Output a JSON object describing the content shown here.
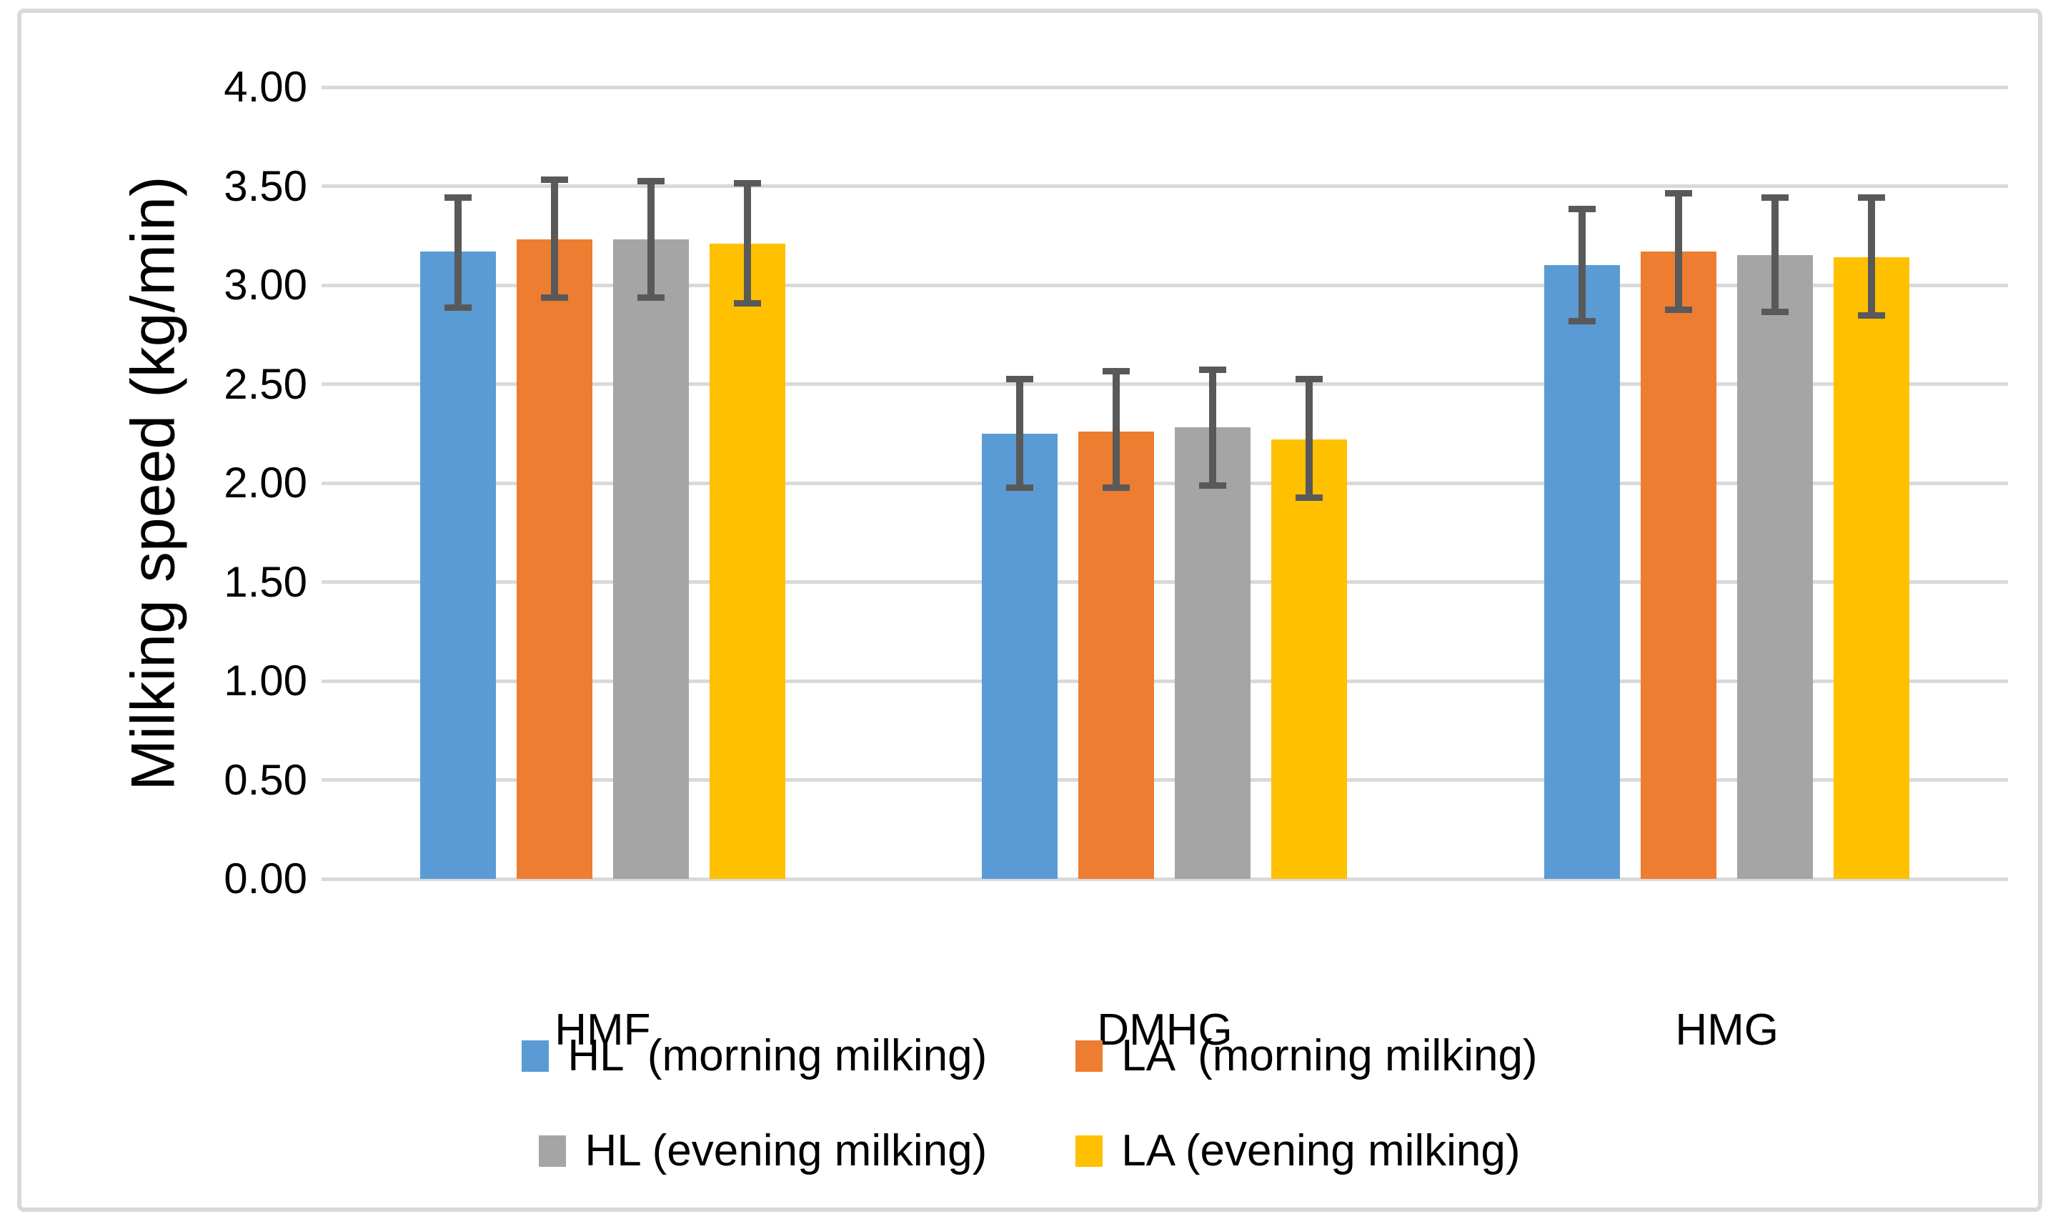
{
  "chart_data": {
    "type": "bar",
    "title": "",
    "xlabel": "",
    "ylabel": "Milking speed (kg/min)",
    "ylim": [
      0,
      4
    ],
    "ytick_step": 0.5,
    "yticks": [
      "0.00",
      "0.50",
      "1.00",
      "1.50",
      "2.00",
      "2.50",
      "3.00",
      "3.50",
      "4.00"
    ],
    "grid": true,
    "legend_position": "bottom",
    "categories": [
      "HMF",
      "DMHG",
      "HMG"
    ],
    "series": [
      {
        "name": "HL  (morning milking)",
        "color": "#5B9BD5",
        "values": [
          3.17,
          2.25,
          3.1
        ],
        "error_low": [
          2.87,
          1.96,
          2.8
        ],
        "error_high": [
          3.46,
          2.54,
          3.4
        ]
      },
      {
        "name": "LA  (morning milking)",
        "color": "#ED7D31",
        "values": [
          3.23,
          2.26,
          3.17
        ],
        "error_low": [
          2.92,
          1.96,
          2.86
        ],
        "error_high": [
          3.55,
          2.58,
          3.48
        ]
      },
      {
        "name": "HL (evening milking)",
        "color": "#A5A5A5",
        "values": [
          3.23,
          2.28,
          3.15
        ],
        "error_low": [
          2.92,
          1.97,
          2.85
        ],
        "error_high": [
          3.54,
          2.59,
          3.46
        ]
      },
      {
        "name": "LA (evening milking)",
        "color": "#FFC000",
        "values": [
          3.21,
          2.22,
          3.14
        ],
        "error_low": [
          2.89,
          1.91,
          2.83
        ],
        "error_high": [
          3.53,
          2.54,
          3.46
        ]
      }
    ],
    "legend_rows": [
      [
        0,
        1
      ],
      [
        2,
        3
      ]
    ],
    "colors": {
      "error_bar": "#595959",
      "gridline": "#D9D9D9",
      "frame_border": "#D9D9D9",
      "text": "#000000",
      "background": "#FFFFFF"
    }
  }
}
